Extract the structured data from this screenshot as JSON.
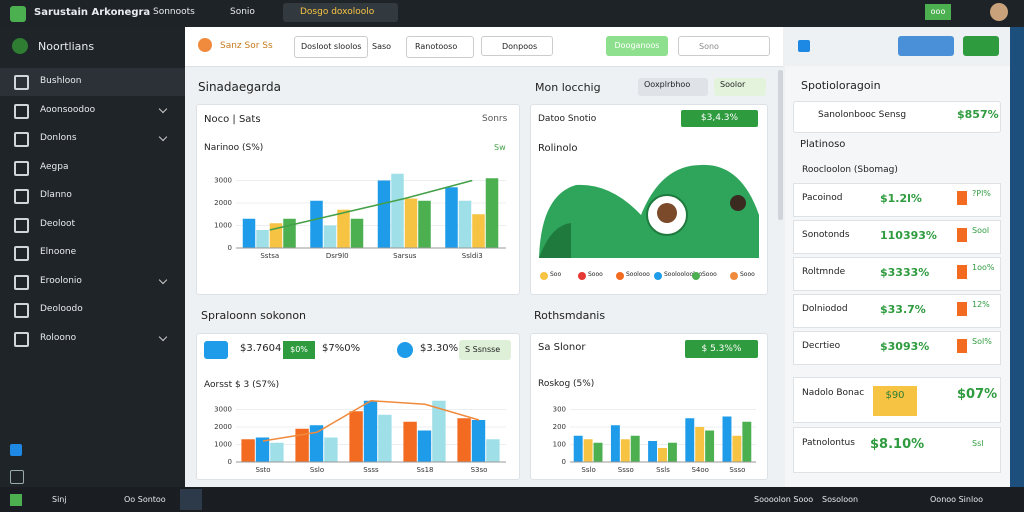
{
  "topbar": {
    "app_title": "Sarustain Arkonegra",
    "tabs": [
      "Sonnoots",
      "Sonio",
      "Dosgo doxoloolo"
    ],
    "button": "ooo"
  },
  "sidebar": {
    "title": "Noortlians",
    "items": [
      "Bushloon",
      "Aoonsoodoo",
      "Donlons",
      "Aegpa",
      "Dlanno",
      "Deoloot",
      "Elnoone",
      "Eroolonio",
      "Deoloodo",
      "Roloono"
    ]
  },
  "toolbar": {
    "brand": "Sanz Sor Ss",
    "fields": [
      "Dosloot sloolos",
      "Saso",
      "Ranotooso",
      "Donpoos"
    ],
    "button": "Dooganoos",
    "search": "Sono"
  },
  "sections": [
    {
      "title": "Sinadaegarda",
      "side_title": "Mon locchig",
      "side_buttons": [
        "Ooxplrbhoo",
        "Soolor"
      ]
    },
    {
      "title": "Spraloonn sokonon",
      "side_title": "Rothsmdanis"
    }
  ],
  "panels": [
    {
      "header": "Noco | Sats",
      "action": "Sonrs",
      "chart": {
        "title": "Narinoo (S%)",
        "tag": "Sw",
        "categories": [
          "Sstsa",
          "Dsr9l0",
          "Sarsus",
          "Ssldi3"
        ],
        "series": [
          {
            "color": "#1e9be9",
            "values": [
              1300,
              2100,
              3000,
              2700
            ]
          },
          {
            "color": "#9fe0e8",
            "values": [
              800,
              1000,
              3300,
              2100
            ]
          },
          {
            "color": "#f6c343",
            "values": [
              1100,
              1700,
              2200,
              1500
            ]
          },
          {
            "color": "#4caf50",
            "values": [
              1300,
              1300,
              2100,
              3100
            ]
          }
        ],
        "line": {
          "color": "#43a047",
          "values": [
            800,
            1500,
            2200,
            3000
          ]
        },
        "ylim": [
          0,
          4000
        ],
        "yticks": [
          0,
          1000,
          2000,
          3000
        ]
      }
    },
    {
      "header": "Datoo Snotio",
      "badge": "$3,4.3%",
      "title": "Rolinolo",
      "legend": [
        "Soo",
        "Sooo",
        "Soolooo",
        "Sooloolooloo",
        "Sooo",
        "Sooo"
      ]
    },
    {
      "stats": [
        "$3.7604",
        "$7%0%",
        "$3.30%"
      ],
      "badge": "$0%",
      "button": "S Ssnsse",
      "chart": {
        "title": "Aorsst $ 3 (S7%)",
        "categories": [
          "Ssto",
          "Sslo",
          "Ssss",
          "Ss18",
          "S3so"
        ],
        "series": [
          {
            "color": "#f26b21",
            "values": [
              1300,
              1900,
              2900,
              2300,
              2500
            ]
          },
          {
            "color": "#1e9be9",
            "values": [
              1400,
              2100,
              3500,
              1800,
              2400
            ]
          },
          {
            "color": "#9fe0e8",
            "values": [
              1100,
              1400,
              2700,
              3500,
              1300
            ]
          }
        ],
        "line": {
          "color": "#f08a3c",
          "values": [
            1200,
            1700,
            3500,
            3300,
            2400
          ]
        },
        "ylim": [
          0,
          4000
        ],
        "yticks": [
          0,
          1000,
          2000,
          3000
        ]
      }
    },
    {
      "header": "Sa Slonor",
      "badge": "$ 5.3%%",
      "chart": {
        "title": "Roskog (5%)",
        "categories": [
          "Sslo",
          "Ssso",
          "Ssls",
          "S4oo",
          "Ssso"
        ],
        "series": [
          {
            "color": "#1e9be9",
            "values": [
              150,
              210,
              120,
              250,
              260
            ]
          },
          {
            "color": "#f6c343",
            "values": [
              130,
              130,
              80,
              200,
              150
            ]
          },
          {
            "color": "#4caf50",
            "values": [
              110,
              150,
              110,
              180,
              230
            ]
          }
        ],
        "ylim": [
          0,
          400
        ],
        "yticks": [
          0,
          100,
          200,
          300
        ]
      }
    }
  ],
  "right_panel": {
    "title": "Spotioloragoin",
    "top_label": "Sanolonbooc Sensg",
    "top_value": "$857%",
    "section": "Platinoso",
    "subheader": "Roocloolon (Sbomag)",
    "rows": [
      {
        "name": "Pacoinod",
        "value": "$1.2l%",
        "tag": "?Pl%"
      },
      {
        "name": "Sonotonds",
        "value": "110393%",
        "tag": "Sool"
      },
      {
        "name": "Roltmnde",
        "value": "$3333%",
        "tag": "1oo%"
      },
      {
        "name": "Dolniodod",
        "value": "$33.7%",
        "tag": "12%"
      },
      {
        "name": "Decrtieo",
        "value": "$3093%",
        "tag": "Sol%"
      }
    ],
    "featured": [
      {
        "name": "Nadolo Bonac",
        "badge": "$90",
        "value": "$07%"
      },
      {
        "name": "Patnolontus",
        "value": "$8.10%",
        "tag": "Ssl"
      }
    ]
  },
  "taskbar": {
    "left": [
      "Sinj",
      "Oo Sontoo"
    ],
    "right": [
      "Soooolon Sooo",
      "Sosoloon",
      "Oonoo Sinloo"
    ]
  }
}
